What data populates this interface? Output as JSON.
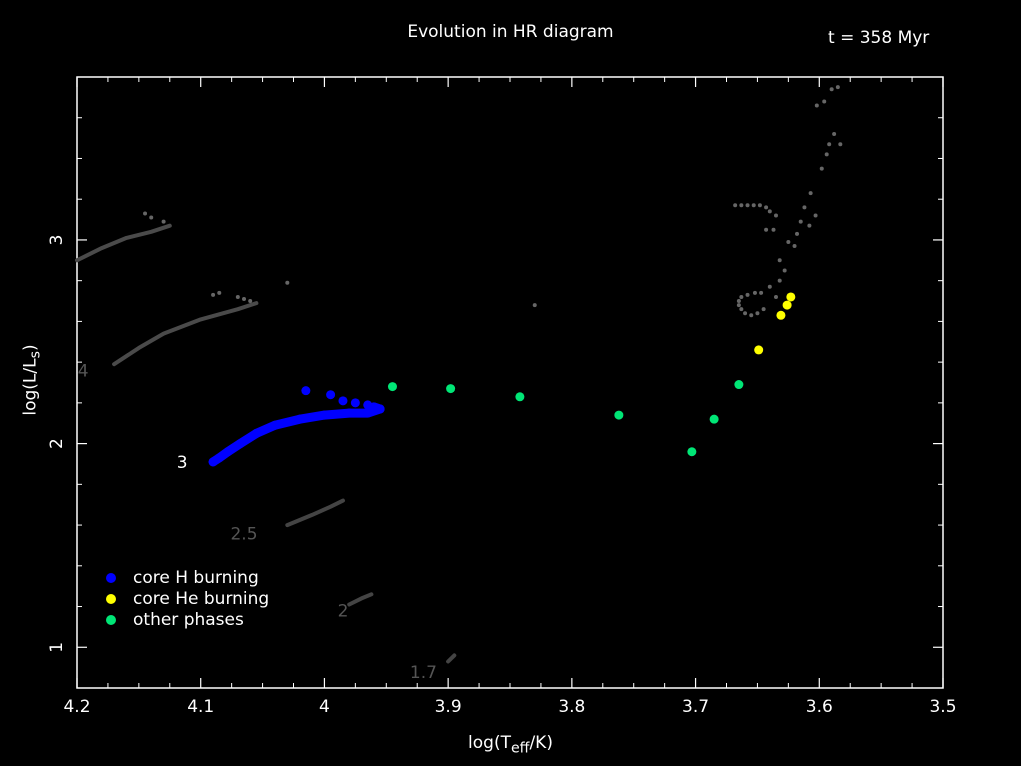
{
  "chart_data": {
    "type": "scatter",
    "title": "Evolution in HR diagram",
    "time_label": "t = 358 Myr",
    "xlabel": {
      "base": "log(T",
      "sub": "eff",
      "rest": "/K)"
    },
    "ylabel": {
      "base": "log(L/L",
      "sub": "s",
      "rest": ")"
    },
    "xlim": [
      4.2,
      3.5
    ],
    "ylim": [
      0.8,
      3.8
    ],
    "x_ticks": [
      "4.2",
      "4.1",
      "4",
      "3.9",
      "3.8",
      "3.7",
      "3.6",
      "3.5"
    ],
    "x_tick_values": [
      4.2,
      4.1,
      4.0,
      3.9,
      3.8,
      3.7,
      3.6,
      3.5
    ],
    "y_ticks": [
      "1",
      "2",
      "3"
    ],
    "y_tick_values": [
      1,
      2,
      3
    ],
    "legend_position": "bottom-left",
    "legend": [
      {
        "label": "core H burning",
        "color": "#0000ff"
      },
      {
        "label": "core He burning",
        "color": "#ffff00"
      },
      {
        "label": "other phases",
        "color": "#00e676"
      }
    ],
    "tracks": [
      {
        "mass": "1.7",
        "color": "#444444",
        "points": [
          [
            3.9,
            0.93
          ],
          [
            3.895,
            0.96
          ]
        ]
      },
      {
        "mass": "2",
        "color": "#444444",
        "points": [
          [
            3.98,
            1.21
          ],
          [
            3.97,
            1.24
          ],
          [
            3.962,
            1.26
          ]
        ]
      },
      {
        "mass": "2.5",
        "color": "#444444",
        "points": [
          [
            4.03,
            1.6
          ],
          [
            4.01,
            1.65
          ],
          [
            3.995,
            1.69
          ],
          [
            3.985,
            1.72
          ]
        ]
      },
      {
        "mass": "4",
        "color": "#4a4a4a",
        "points": [
          [
            4.17,
            2.39
          ],
          [
            4.15,
            2.47
          ],
          [
            4.13,
            2.54
          ],
          [
            4.1,
            2.61
          ],
          [
            4.07,
            2.66
          ],
          [
            4.055,
            2.69
          ]
        ]
      },
      {
        "mass": "",
        "color": "#4a4a4a",
        "points": [
          [
            4.2,
            2.9
          ],
          [
            4.18,
            2.96
          ],
          [
            4.16,
            3.01
          ],
          [
            4.14,
            3.04
          ],
          [
            4.125,
            3.07
          ]
        ]
      }
    ],
    "scatter_gray": {
      "color": "#666666",
      "points": [
        [
          4.145,
          3.13
        ],
        [
          4.14,
          3.11
        ],
        [
          4.13,
          3.09
        ],
        [
          4.085,
          2.74
        ],
        [
          4.07,
          2.72
        ],
        [
          4.065,
          2.71
        ],
        [
          4.06,
          2.7
        ],
        [
          4.09,
          2.73
        ],
        [
          4.03,
          2.79
        ],
        [
          3.83,
          2.68
        ],
        [
          3.668,
          3.17
        ],
        [
          3.663,
          3.17
        ],
        [
          3.658,
          3.17
        ],
        [
          3.653,
          3.17
        ],
        [
          3.648,
          3.17
        ],
        [
          3.643,
          3.16
        ],
        [
          3.64,
          3.14
        ],
        [
          3.635,
          3.12
        ],
        [
          3.637,
          3.05
        ],
        [
          3.643,
          3.05
        ],
        [
          3.632,
          2.9
        ],
        [
          3.628,
          2.85
        ],
        [
          3.62,
          2.97
        ],
        [
          3.625,
          2.99
        ],
        [
          3.618,
          3.03
        ],
        [
          3.615,
          3.09
        ],
        [
          3.612,
          3.16
        ],
        [
          3.607,
          3.23
        ],
        [
          3.608,
          3.07
        ],
        [
          3.603,
          3.12
        ],
        [
          3.598,
          3.35
        ],
        [
          3.594,
          3.42
        ],
        [
          3.592,
          3.47
        ],
        [
          3.588,
          3.52
        ],
        [
          3.583,
          3.47
        ],
        [
          3.602,
          3.66
        ],
        [
          3.596,
          3.68
        ],
        [
          3.59,
          3.74
        ],
        [
          3.585,
          3.75
        ],
        [
          3.64,
          2.77
        ],
        [
          3.635,
          2.72
        ],
        [
          3.632,
          2.8
        ],
        [
          3.645,
          2.66
        ],
        [
          3.65,
          2.64
        ],
        [
          3.655,
          2.63
        ],
        [
          3.66,
          2.64
        ],
        [
          3.663,
          2.66
        ],
        [
          3.665,
          2.68
        ],
        [
          3.665,
          2.7
        ],
        [
          3.663,
          2.72
        ],
        [
          3.658,
          2.73
        ],
        [
          3.652,
          2.74
        ],
        [
          3.647,
          2.74
        ]
      ]
    },
    "series": [
      {
        "name": "core H burning",
        "color": "#0000ff",
        "points": [
          [
            4.015,
            2.26
          ],
          [
            3.995,
            2.24
          ],
          [
            3.985,
            2.21
          ],
          [
            3.975,
            2.2
          ],
          [
            3.965,
            2.19
          ],
          [
            3.96,
            2.18
          ],
          [
            3.955,
            2.17
          ],
          [
            3.965,
            2.15
          ],
          [
            3.98,
            2.15
          ],
          [
            4.0,
            2.14
          ],
          [
            4.02,
            2.12
          ],
          [
            4.04,
            2.09
          ],
          [
            4.055,
            2.05
          ],
          [
            4.068,
            2.0
          ],
          [
            4.078,
            1.96
          ],
          [
            4.085,
            1.93
          ],
          [
            4.09,
            1.91
          ]
        ]
      },
      {
        "name": "core He burning",
        "color": "#ffff00",
        "points": [
          [
            3.649,
            2.46
          ],
          [
            3.631,
            2.63
          ],
          [
            3.626,
            2.68
          ],
          [
            3.623,
            2.72
          ]
        ]
      },
      {
        "name": "other phases",
        "color": "#00e676",
        "points": [
          [
            3.945,
            2.28
          ],
          [
            3.898,
            2.27
          ],
          [
            3.842,
            2.23
          ],
          [
            3.762,
            2.14
          ],
          [
            3.703,
            1.96
          ],
          [
            3.685,
            2.12
          ],
          [
            3.665,
            2.29
          ]
        ]
      }
    ],
    "mass_labels": [
      {
        "text": "3",
        "x": 4.115,
        "y": 1.88,
        "color": "#ffffff"
      },
      {
        "text": "4",
        "x": 4.195,
        "y": 2.33,
        "color": "#555555"
      },
      {
        "text": "2.5",
        "x": 4.065,
        "y": 1.53,
        "color": "#555555"
      },
      {
        "text": "2",
        "x": 3.985,
        "y": 1.15,
        "color": "#555555"
      },
      {
        "text": "1.7",
        "x": 3.92,
        "y": 0.85,
        "color": "#555555"
      }
    ]
  }
}
